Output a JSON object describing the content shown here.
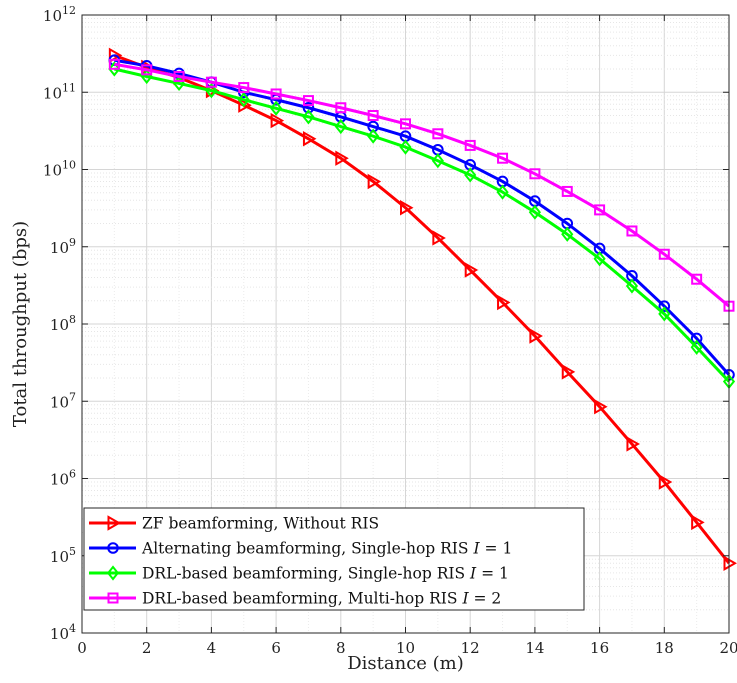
{
  "chart_data": {
    "type": "line",
    "xlabel": "Distance (m)",
    "ylabel": "Total throughput (bps)",
    "xlim": [
      0,
      20
    ],
    "ylim": [
      10000,
      1000000000000
    ],
    "yscale": "log",
    "grid": true,
    "legend_position": "bottom-left",
    "x_ticks": [
      "0",
      "2",
      "4",
      "6",
      "8",
      "10",
      "12",
      "14",
      "16",
      "18",
      "20"
    ],
    "y_ticks": [
      {
        "base": "10",
        "exp": "4"
      },
      {
        "base": "10",
        "exp": "5"
      },
      {
        "base": "10",
        "exp": "6"
      },
      {
        "base": "10",
        "exp": "7"
      },
      {
        "base": "10",
        "exp": "8"
      },
      {
        "base": "10",
        "exp": "9"
      },
      {
        "base": "10",
        "exp": "10"
      },
      {
        "base": "10",
        "exp": "11"
      },
      {
        "base": "10",
        "exp": "12"
      }
    ],
    "x": [
      1,
      2,
      3,
      4,
      5,
      6,
      7,
      8,
      9,
      10,
      11,
      12,
      13,
      14,
      15,
      16,
      17,
      18,
      19,
      20
    ],
    "series": [
      {
        "name": "ZF beamforming, Without RIS",
        "color": "#ff0000",
        "marker": "triangle-right",
        "values": [
          300000000000.0,
          210000000000.0,
          155000000000.0,
          105000000000.0,
          68000000000.0,
          43000000000.0,
          25000000000.0,
          14000000000.0,
          7000000000.0,
          3200000000.0,
          1300000000.0,
          500000000.0,
          190000000.0,
          70000000.0,
          24000000.0,
          8500000.0,
          2800000.0,
          900000.0,
          270000.0,
          80000.0
        ]
      },
      {
        "name": "Alternating beamforming, Single-hop RIS I = 1",
        "color": "#0000ff",
        "marker": "circle",
        "values": [
          260000000000.0,
          220000000000.0,
          175000000000.0,
          135000000000.0,
          100000000000.0,
          80000000000.0,
          63000000000.0,
          48000000000.0,
          36000000000.0,
          27000000000.0,
          18000000000.0,
          11500000000.0,
          7000000000.0,
          3900000000.0,
          2000000000.0,
          950000000.0,
          420000000.0,
          170000000.0,
          65000000.0,
          22000000.0
        ]
      },
      {
        "name": "DRL-based beamforming, Single-hop RIS I = 1",
        "color": "#00ff00",
        "marker": "diamond",
        "values": [
          200000000000.0,
          160000000000.0,
          130000000000.0,
          105000000000.0,
          80000000000.0,
          62000000000.0,
          48000000000.0,
          36000000000.0,
          27000000000.0,
          19500000000.0,
          13000000000.0,
          8500000000.0,
          5100000000.0,
          2800000000.0,
          1450000000.0,
          700000000.0,
          310000000.0,
          135000000.0,
          50000000.0,
          18000000.0
        ]
      },
      {
        "name": "DRL-based beamforming, Multi-hop RIS I = 2",
        "color": "#ff00ff",
        "marker": "square",
        "values": [
          230000000000.0,
          195000000000.0,
          160000000000.0,
          135000000000.0,
          115000000000.0,
          95000000000.0,
          78000000000.0,
          63000000000.0,
          50000000000.0,
          39000000000.0,
          29000000000.0,
          20500000000.0,
          14000000000.0,
          8800000000.0,
          5200000000.0,
          3000000000.0,
          1600000000.0,
          800000000.0,
          380000000.0,
          170000000.0
        ]
      }
    ],
    "legend": [
      {
        "text": "ZF beamforming, Without RIS",
        "var": "",
        "eq": ""
      },
      {
        "text": "Alternating beamforming, Single-hop RIS ",
        "var": "I",
        "eq": " = 1"
      },
      {
        "text": "DRL-based beamforming, Single-hop RIS ",
        "var": "I",
        "eq": " = 1"
      },
      {
        "text": "DRL-based beamforming, Multi-hop RIS ",
        "var": "I",
        "eq": " = 2"
      }
    ]
  }
}
